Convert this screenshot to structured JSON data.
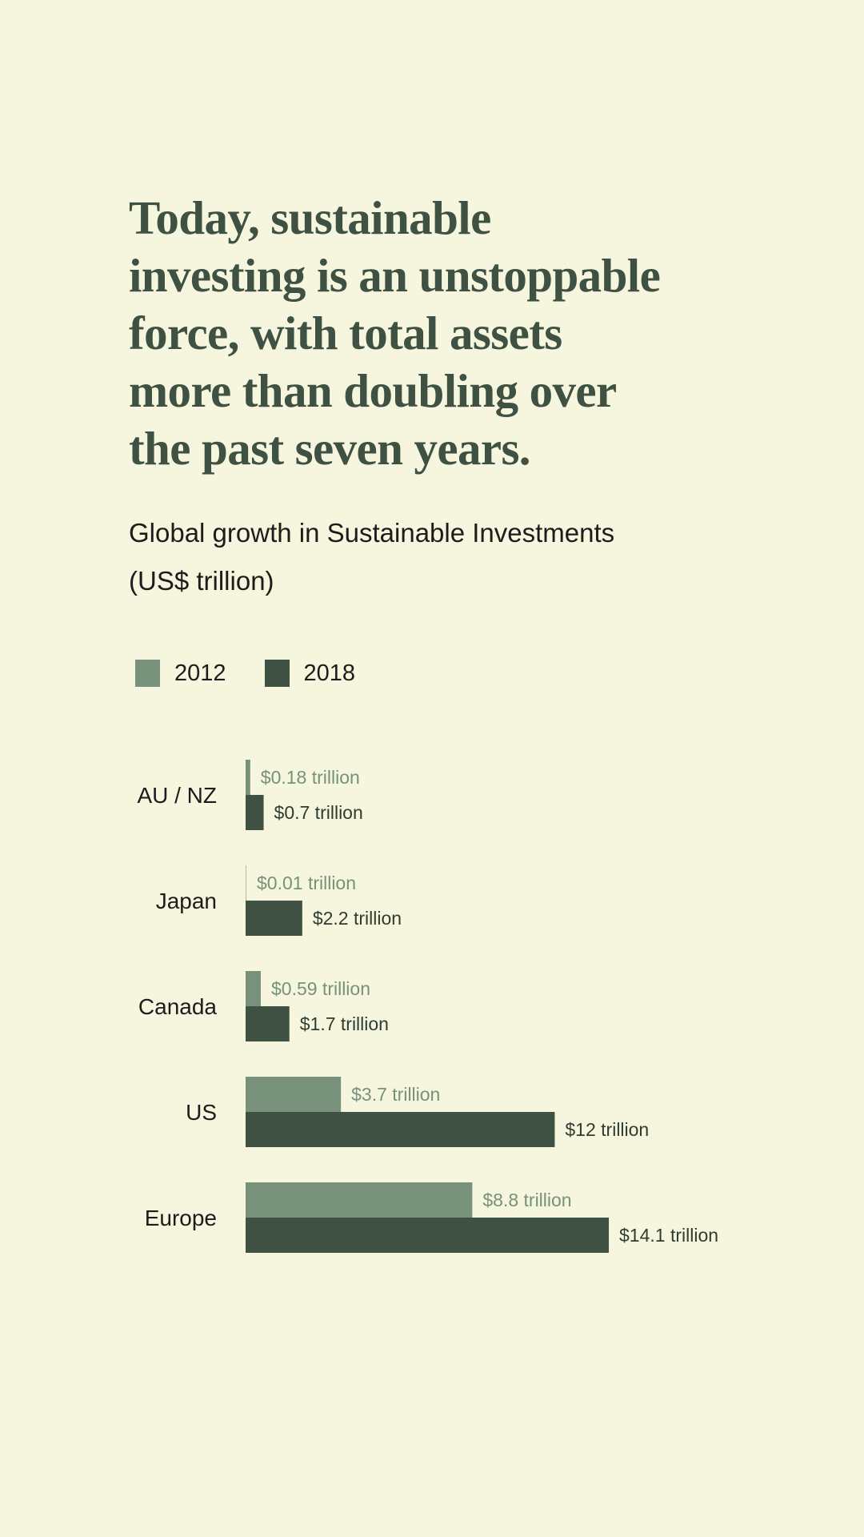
{
  "headline": {
    "lines": [
      "Today, sustainable",
      "investing is an unstoppable",
      "force, with total assets",
      "more than doubling over",
      "the past seven years."
    ]
  },
  "colors": {
    "background": "#f6f6de",
    "headline": "#3f5142",
    "series_2012": "#77917b",
    "series_2018": "#3f5142",
    "text": "#1c1c1c"
  },
  "chart_data": {
    "type": "bar",
    "orientation": "horizontal",
    "title_lines": [
      "Global growth in Sustainable Investments",
      "(US$ trillion)"
    ],
    "xlabel": "",
    "ylabel": "",
    "xlim": [
      0,
      14.1
    ],
    "grid": false,
    "legend_position": "top-left",
    "categories": [
      "AU / NZ",
      "Japan",
      "Canada",
      "US",
      "Europe"
    ],
    "series": [
      {
        "name": "2012",
        "color": "#77917b",
        "values": [
          0.18,
          0.01,
          0.59,
          3.7,
          8.8
        ],
        "labels": [
          "$0.18 trillion",
          "$0.01 trillion",
          "$0.59 trillion",
          "$3.7 trillion",
          "$8.8 trillion"
        ]
      },
      {
        "name": "2018",
        "color": "#3f5142",
        "values": [
          0.7,
          2.2,
          1.7,
          12,
          14.1
        ],
        "labels": [
          "$0.7 trillion",
          "$2.2 trillion",
          "$1.7 trillion",
          "$12 trillion",
          "$14.1 trillion"
        ]
      }
    ]
  }
}
